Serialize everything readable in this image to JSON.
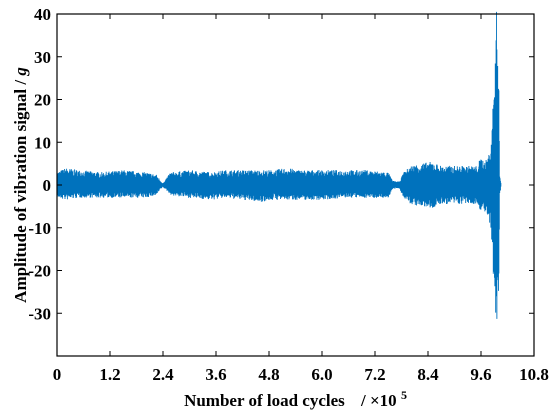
{
  "chart_data": {
    "type": "area",
    "title": "",
    "xlabel": "Number of load cycles",
    "xlabel_unit_prefix": "/ ×10",
    "xlabel_unit_exp": "5",
    "ylabel": "Amplitude of vibration signal /",
    "ylabel_unit": "g",
    "xlim": [
      0,
      10.8
    ],
    "ylim": [
      -40,
      40
    ],
    "xticks": [
      "0",
      "1.2",
      "2.4",
      "3.6",
      "4.8",
      "6.0",
      "7.2",
      "8.4",
      "9.6",
      "10.8"
    ],
    "yticks": [
      "40",
      "30",
      "20",
      "10",
      "0",
      "-10",
      "-20",
      "-30"
    ],
    "xtick_values": [
      0,
      1.2,
      2.4,
      3.6,
      4.8,
      6.0,
      7.2,
      8.4,
      9.6,
      10.8
    ],
    "ytick_values": [
      40,
      30,
      20,
      10,
      0,
      -10,
      -20,
      -30
    ],
    "grid": false,
    "series": [
      {
        "color": "#0072BD",
        "x": [
          0,
          0.2,
          0.5,
          1.0,
          1.5,
          2.0,
          2.25,
          2.35,
          2.4,
          2.45,
          2.55,
          2.6,
          3.0,
          3.5,
          3.8,
          4.2,
          4.6,
          4.9,
          5.2,
          5.5,
          6.0,
          6.5,
          7.0,
          7.5,
          7.6,
          7.75,
          7.85,
          8.0,
          8.2,
          8.5,
          8.7,
          9.0,
          9.3,
          9.5,
          9.6,
          9.7,
          9.8,
          9.85,
          9.9,
          9.95,
          10.0,
          10.02,
          10.05
        ],
        "upper": [
          3,
          4,
          3.5,
          3,
          3.5,
          3,
          2.5,
          1,
          0.5,
          1,
          3,
          3,
          3.5,
          3,
          3.5,
          3.5,
          3.5,
          3.5,
          4,
          3.5,
          3.5,
          3.5,
          3.5,
          3,
          1,
          0.8,
          3,
          4.5,
          5,
          5.5,
          4.5,
          4.5,
          4.5,
          4.5,
          6.5,
          5.5,
          8,
          14,
          26,
          41,
          35,
          3,
          0.5
        ],
        "lower": [
          -3,
          -3.5,
          -3,
          -3,
          -3,
          -3,
          -2.5,
          -1,
          -0.5,
          -1,
          -2,
          -2.5,
          -3,
          -3.5,
          -3,
          -3.5,
          -4,
          -3.5,
          -3.5,
          -3.5,
          -3.5,
          -3,
          -3,
          -3,
          -1,
          -0.8,
          -3,
          -4.5,
          -5,
          -5.5,
          -4.5,
          -4.5,
          -4.5,
          -4.5,
          -6,
          -6.5,
          -10,
          -16,
          -27,
          -36,
          -30,
          -3,
          -0.5
        ]
      }
    ]
  }
}
